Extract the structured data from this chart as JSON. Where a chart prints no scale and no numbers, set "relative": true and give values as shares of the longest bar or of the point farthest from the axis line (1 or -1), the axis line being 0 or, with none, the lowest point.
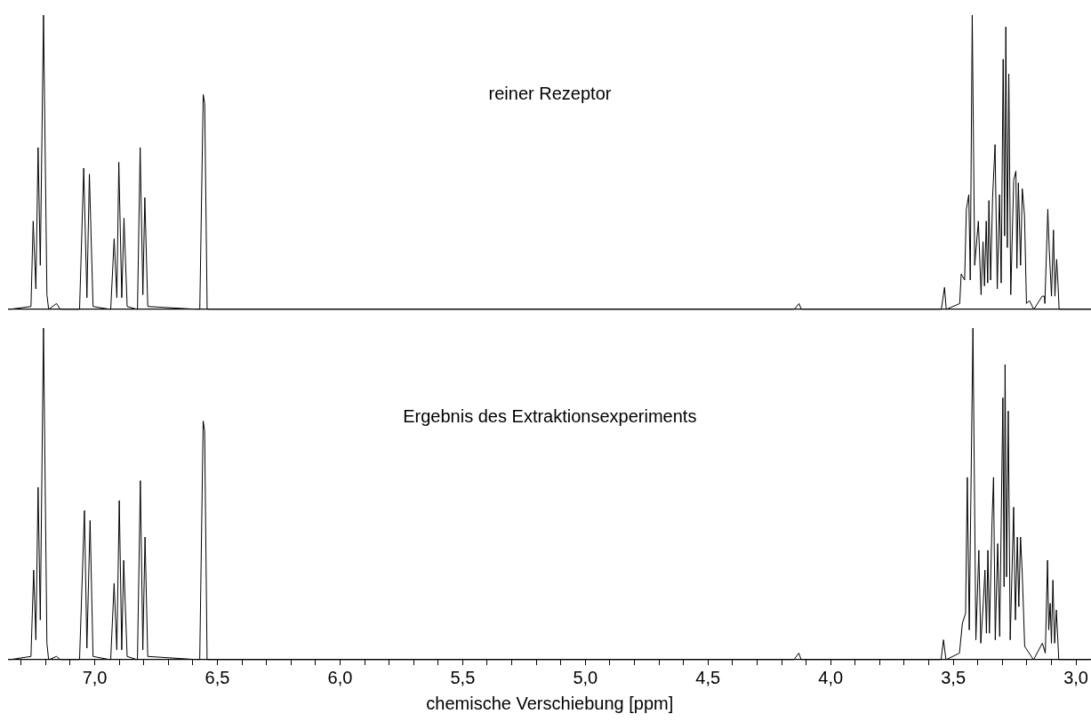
{
  "chart_data": [
    {
      "type": "line",
      "relative": true,
      "annotations": [
        "reiner Rezeptor"
      ],
      "xlim": [
        7.35,
        2.94
      ],
      "tick_labels": false,
      "grid": false,
      "marker": "none",
      "series": [
        {
          "color": "#000000",
          "x": [
            7.35,
            7.26,
            7.251,
            7.24,
            7.231,
            7.222,
            7.209,
            7.195,
            7.188,
            7.156,
            7.14,
            7.062,
            7.045,
            7.032,
            7.022,
            7.007,
            6.935,
            6.921,
            6.91,
            6.902,
            6.89,
            6.881,
            6.868,
            6.826,
            6.815,
            6.804,
            6.796,
            6.784,
            6.572,
            6.558,
            6.552,
            6.542,
            4.15,
            4.13,
            4.12,
            3.55,
            3.537,
            3.53,
            3.475,
            3.469,
            3.455,
            3.448,
            3.438,
            3.432,
            3.424,
            3.414,
            3.399,
            3.388,
            3.38,
            3.374,
            3.367,
            3.361,
            3.356,
            3.349,
            3.341,
            3.331,
            3.322,
            3.313,
            3.306,
            3.298,
            3.292,
            3.287,
            3.281,
            3.275,
            3.267,
            3.255,
            3.246,
            3.242,
            3.236,
            3.227,
            3.22,
            3.211,
            3.203,
            3.191,
            3.173,
            3.139,
            3.13,
            3.128,
            3.116,
            3.11,
            3.101,
            3.093,
            3.087,
            3.08,
            3.074,
            3.07,
            2.94
          ],
          "values": [
            0,
            0.01,
            0.3,
            0.07,
            0.55,
            0.15,
            1,
            0.05,
            0,
            0.02,
            0,
            0,
            0.48,
            0.04,
            0.46,
            0.01,
            0,
            0.24,
            0.04,
            0.5,
            0.04,
            0.31,
            0.01,
            0,
            0.55,
            0.05,
            0.38,
            0.01,
            0,
            0.73,
            0.7,
            0,
            0,
            0.02,
            0,
            0,
            0.075,
            0,
            0.02,
            0.12,
            0.1,
            0.34,
            0.39,
            0.1,
            1,
            0.15,
            0.3,
            0.05,
            0.23,
            0.08,
            0.3,
            0.09,
            0.37,
            0.1,
            0.38,
            0.56,
            0.07,
            0.39,
            0.09,
            0.85,
            0.25,
            0.96,
            0.21,
            0.8,
            0.05,
            0.44,
            0.47,
            0.14,
            0.43,
            0.15,
            0.41,
            0.32,
            0.02,
            0.03,
            0,
            0.045,
            0.045,
            0.02,
            0.34,
            0.2,
            0.045,
            0.27,
            0.045,
            0.17,
            0.08,
            0,
            0
          ]
        }
      ]
    },
    {
      "type": "line",
      "relative": true,
      "annotations": [
        "Ergebnis des Extraktionsexperiments"
      ],
      "xlabel": "chemische Verschiebung [ppm]",
      "xlim": [
        7.35,
        2.94
      ],
      "tick_labels": "x",
      "grid": false,
      "marker": "none",
      "xticks": [
        {
          "value": 7.3,
          "label": null
        },
        {
          "value": 7.2,
          "label": null
        },
        {
          "value": 7.1,
          "label": null
        },
        {
          "value": 7.0,
          "label": "7,0"
        },
        {
          "value": 6.9,
          "label": null
        },
        {
          "value": 6.8,
          "label": null
        },
        {
          "value": 6.7,
          "label": null
        },
        {
          "value": 6.6,
          "label": null
        },
        {
          "value": 6.5,
          "label": "6,5"
        },
        {
          "value": 6.4,
          "label": null
        },
        {
          "value": 6.3,
          "label": null
        },
        {
          "value": 6.2,
          "label": null
        },
        {
          "value": 6.1,
          "label": null
        },
        {
          "value": 6.0,
          "label": "6,0"
        },
        {
          "value": 5.9,
          "label": null
        },
        {
          "value": 5.8,
          "label": null
        },
        {
          "value": 5.7,
          "label": null
        },
        {
          "value": 5.6,
          "label": null
        },
        {
          "value": 5.5,
          "label": "5,5"
        },
        {
          "value": 5.4,
          "label": null
        },
        {
          "value": 5.3,
          "label": null
        },
        {
          "value": 5.2,
          "label": null
        },
        {
          "value": 5.1,
          "label": null
        },
        {
          "value": 5.0,
          "label": "5,0"
        },
        {
          "value": 4.9,
          "label": null
        },
        {
          "value": 4.8,
          "label": null
        },
        {
          "value": 4.7,
          "label": null
        },
        {
          "value": 4.6,
          "label": null
        },
        {
          "value": 4.5,
          "label": "4,5"
        },
        {
          "value": 4.4,
          "label": null
        },
        {
          "value": 4.3,
          "label": null
        },
        {
          "value": 4.2,
          "label": null
        },
        {
          "value": 4.1,
          "label": null
        },
        {
          "value": 4.0,
          "label": "4,0"
        },
        {
          "value": 3.9,
          "label": null
        },
        {
          "value": 3.8,
          "label": null
        },
        {
          "value": 3.7,
          "label": null
        },
        {
          "value": 3.6,
          "label": null
        },
        {
          "value": 3.5,
          "label": "3,5"
        },
        {
          "value": 3.4,
          "label": null
        },
        {
          "value": 3.3,
          "label": null
        },
        {
          "value": 3.2,
          "label": null
        },
        {
          "value": 3.1,
          "label": null
        },
        {
          "value": 3.0,
          "label": "3,0"
        }
      ],
      "series": [
        {
          "color": "#000000",
          "x": [
            7.35,
            7.26,
            7.249,
            7.24,
            7.231,
            7.222,
            7.209,
            7.195,
            7.188,
            7.156,
            7.14,
            7.062,
            7.042,
            7.032,
            7.019,
            7.007,
            6.935,
            6.921,
            6.91,
            6.9,
            6.89,
            6.882,
            6.868,
            6.826,
            6.814,
            6.804,
            6.795,
            6.784,
            6.572,
            6.558,
            6.552,
            6.542,
            4.15,
            4.13,
            4.12,
            3.55,
            3.54,
            3.53,
            3.475,
            3.463,
            3.45,
            3.443,
            3.435,
            3.42,
            3.408,
            3.396,
            3.388,
            3.378,
            3.371,
            3.365,
            3.359,
            3.353,
            3.342,
            3.336,
            3.329,
            3.319,
            3.311,
            3.298,
            3.293,
            3.289,
            3.283,
            3.276,
            3.268,
            3.254,
            3.247,
            3.239,
            3.233,
            3.226,
            3.219,
            3.209,
            3.2,
            3.173,
            3.137,
            3.125,
            3.116,
            3.111,
            3.105,
            3.1,
            3.094,
            3.087,
            3.08,
            3.07,
            2.94
          ],
          "values": [
            0,
            0.01,
            0.27,
            0.06,
            0.52,
            0.12,
            1,
            0.05,
            0,
            0.01,
            0,
            0,
            0.45,
            0.035,
            0.42,
            0.01,
            0,
            0.23,
            0.03,
            0.48,
            0.03,
            0.3,
            0.01,
            0,
            0.54,
            0.03,
            0.37,
            0.01,
            0,
            0.72,
            0.69,
            0,
            0,
            0.02,
            0,
            0,
            0.06,
            0,
            0.02,
            0.11,
            0.14,
            0.55,
            0.09,
            1,
            0.06,
            0.33,
            0.05,
            0.17,
            0.27,
            0.08,
            0.33,
            0.08,
            0.42,
            0.55,
            0.06,
            0.35,
            0.07,
            0.79,
            0.22,
            0.89,
            0.25,
            0.75,
            0.06,
            0.46,
            0.12,
            0.37,
            0.16,
            0.37,
            0.26,
            0.04,
            0.03,
            0,
            0.05,
            0.02,
            0.3,
            0.09,
            0.17,
            0.05,
            0.24,
            0.05,
            0.15,
            0,
            0
          ]
        }
      ]
    }
  ]
}
